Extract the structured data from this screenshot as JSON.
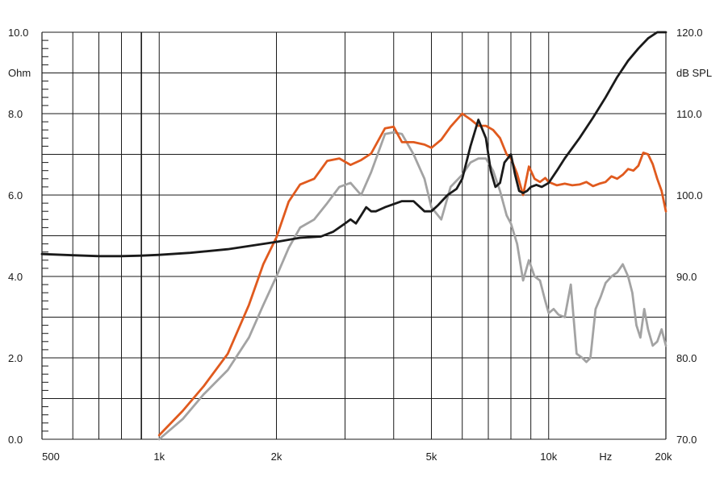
{
  "chart_data": {
    "type": "line",
    "x_scale": "log",
    "xlim": [
      500,
      20000
    ],
    "x_tick_labels": [
      {
        "x": 500,
        "label": "500"
      },
      {
        "x": 1000,
        "label": "1k"
      },
      {
        "x": 2000,
        "label": "2k"
      },
      {
        "x": 5000,
        "label": "5k"
      },
      {
        "x": 10000,
        "label": "10k"
      },
      {
        "x": 20000,
        "label": "20k"
      }
    ],
    "x_unit_label": "Hz",
    "x_unit_position": 14000,
    "x_gridlines": [
      600,
      700,
      800,
      900,
      1000,
      2000,
      3000,
      4000,
      5000,
      6000,
      7000,
      8000,
      9000,
      10000
    ],
    "y_left": {
      "unit": "Ohm",
      "lim": [
        0,
        10
      ],
      "ticks": [
        {
          "v": 0,
          "label": "0.0"
        },
        {
          "v": 2,
          "label": "2.0"
        },
        {
          "v": 4,
          "label": "4.0"
        },
        {
          "v": 6,
          "label": "6.0"
        },
        {
          "v": 8,
          "label": "8.0"
        },
        {
          "v": 10,
          "label": "10.0"
        }
      ]
    },
    "y_right": {
      "unit": "dB SPL",
      "lim": [
        70,
        120
      ],
      "ticks": [
        {
          "v": 70,
          "label": "70.0"
        },
        {
          "v": 80,
          "label": "80.0"
        },
        {
          "v": 90,
          "label": "90.0"
        },
        {
          "v": 100,
          "label": "100.0"
        },
        {
          "v": 110,
          "label": "110.0"
        },
        {
          "v": 120,
          "label": "120.0"
        }
      ]
    },
    "grid": true,
    "colors": {
      "impedance": "#1a1a1a",
      "spl_on_axis": "#e05a1e",
      "spl_off_axis": "#a3a3a3",
      "grid": "#1a1a1a"
    },
    "series": [
      {
        "axis": "left",
        "color_key": "impedance",
        "x": [
          500,
          600,
          700,
          800,
          900,
          1000,
          1200,
          1500,
          2000,
          2300,
          2600,
          2800,
          3000,
          3100,
          3200,
          3300,
          3400,
          3500,
          3600,
          3800,
          4200,
          4500,
          4800,
          5000,
          5200,
          5500,
          5800,
          6000,
          6300,
          6600,
          6900,
          7100,
          7300,
          7500,
          7700,
          8000,
          8200,
          8400,
          8600,
          8800,
          9000,
          9300,
          9600,
          10000,
          10500,
          11000,
          12000,
          13000,
          14000,
          15000,
          16000,
          17000,
          18000,
          19000,
          20000
        ],
        "y": [
          4.55,
          4.52,
          4.5,
          4.5,
          4.51,
          4.53,
          4.58,
          4.67,
          4.85,
          4.95,
          4.98,
          5.1,
          5.3,
          5.4,
          5.3,
          5.5,
          5.7,
          5.6,
          5.6,
          5.7,
          5.85,
          5.85,
          5.6,
          5.6,
          5.75,
          6.0,
          6.15,
          6.4,
          7.2,
          7.85,
          7.4,
          6.6,
          6.2,
          6.3,
          6.8,
          7.0,
          6.5,
          6.1,
          6.05,
          6.1,
          6.2,
          6.25,
          6.2,
          6.3,
          6.6,
          6.9,
          7.4,
          7.9,
          8.4,
          8.9,
          9.3,
          9.6,
          9.85,
          10.0,
          10.0
        ]
      },
      {
        "axis": "right",
        "color_key": "spl_on_axis",
        "x": [
          1000,
          1150,
          1300,
          1500,
          1700,
          1850,
          2000,
          2150,
          2300,
          2500,
          2700,
          2900,
          3100,
          3300,
          3500,
          3800,
          4000,
          4200,
          4500,
          4800,
          5000,
          5300,
          5600,
          6000,
          6300,
          6600,
          6900,
          7200,
          7500,
          7800,
          8000,
          8300,
          8600,
          8900,
          9200,
          9500,
          9800,
          10000,
          10500,
          11000,
          11500,
          12000,
          12500,
          13000,
          13500,
          14000,
          14500,
          15000,
          15500,
          16000,
          16500,
          17000,
          17500,
          18000,
          18500,
          19000,
          19500,
          20000
        ],
        "y": [
          70.5,
          73.5,
          76.5,
          80.5,
          86.5,
          91.5,
          94.8,
          99.2,
          101.3,
          102.0,
          104.2,
          104.5,
          103.7,
          104.3,
          105.1,
          108.2,
          108.4,
          106.5,
          106.5,
          106.2,
          105.8,
          106.8,
          108.4,
          110.0,
          109.3,
          108.5,
          108.5,
          108.0,
          107.0,
          105.0,
          104.5,
          102.6,
          100.0,
          103.5,
          102.0,
          101.6,
          102.1,
          101.6,
          101.2,
          101.4,
          101.2,
          101.3,
          101.6,
          101.1,
          101.4,
          101.6,
          102.3,
          102.0,
          102.5,
          103.2,
          103.0,
          103.6,
          105.2,
          105.0,
          103.8,
          102.0,
          100.5,
          98.0
        ]
      },
      {
        "axis": "right",
        "color_key": "spl_off_axis",
        "x": [
          1000,
          1150,
          1300,
          1500,
          1700,
          1850,
          2000,
          2150,
          2300,
          2500,
          2700,
          2900,
          3100,
          3300,
          3500,
          3800,
          4000,
          4200,
          4500,
          4800,
          5000,
          5300,
          5600,
          6000,
          6300,
          6600,
          6900,
          7200,
          7500,
          7800,
          8000,
          8300,
          8600,
          8900,
          9200,
          9500,
          9800,
          10000,
          10300,
          10600,
          11000,
          11400,
          11800,
          12200,
          12500,
          12800,
          13200,
          13600,
          14000,
          14500,
          15000,
          15500,
          16000,
          16400,
          16800,
          17200,
          17600,
          18000,
          18500,
          19000,
          19500,
          20000
        ],
        "y": [
          70.0,
          72.5,
          75.5,
          78.5,
          82.5,
          86.5,
          90.0,
          93.5,
          96.0,
          97.0,
          99.0,
          101.0,
          101.5,
          100.0,
          102.8,
          107.5,
          107.7,
          107.5,
          105.0,
          102.0,
          98.5,
          97.0,
          101.0,
          102.5,
          104.0,
          104.5,
          104.5,
          103.0,
          100.5,
          97.5,
          96.5,
          94.0,
          89.5,
          92.0,
          90.0,
          89.5,
          87.0,
          85.5,
          86.0,
          85.3,
          85.0,
          89.0,
          80.5,
          80.0,
          79.5,
          80.0,
          86.0,
          87.5,
          89.2,
          90.0,
          90.5,
          91.5,
          90.0,
          88.0,
          84.0,
          82.5,
          86.0,
          83.5,
          81.5,
          82.0,
          83.5,
          81.5
        ]
      }
    ]
  }
}
